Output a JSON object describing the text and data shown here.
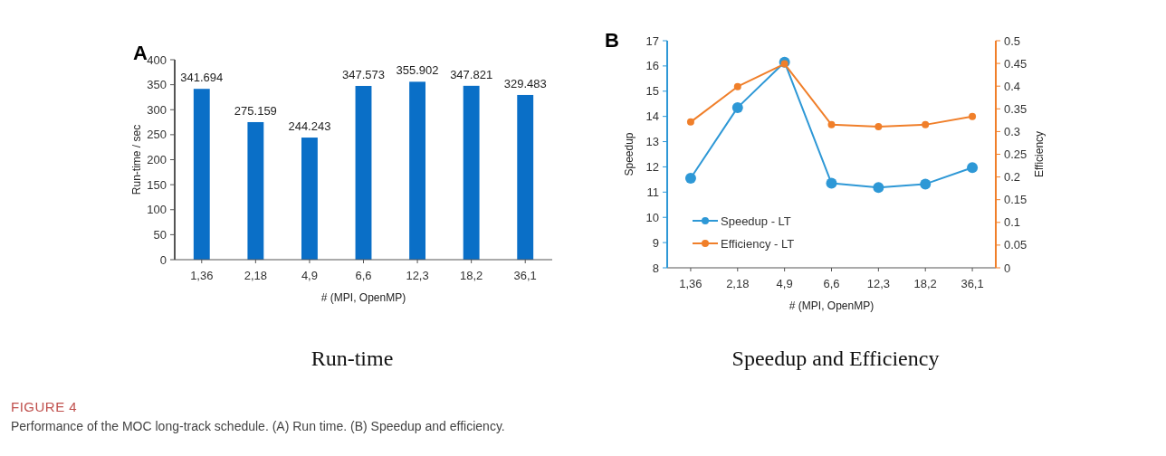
{
  "chart_data": [
    {
      "type": "bar",
      "title": "Run-time",
      "annotations": [
        "A"
      ],
      "xlabel": "# (MPI, OpenMP)",
      "ylabel": "Run-time / sec",
      "categories": [
        "1,36",
        "2,18",
        "4,9",
        "6,6",
        "12,3",
        "18,2",
        "36,1"
      ],
      "values": [
        341.694,
        275.159,
        244.243,
        347.573,
        355.902,
        347.821,
        329.483
      ],
      "color": "#0a6fc7",
      "ylim": [
        0,
        400
      ],
      "yticks": [
        0,
        50,
        100,
        150,
        200,
        250,
        300,
        350,
        400
      ],
      "data_labels": true,
      "grid": false
    },
    {
      "type": "line",
      "title": "Speedup and Efficiency",
      "annotations": [
        "B"
      ],
      "xlabel": "# (MPI, OpenMP)",
      "ylabel": "Speedup",
      "y2label": "Efficiency",
      "categories": [
        "1,36",
        "2,18",
        "4,9",
        "6,6",
        "12,3",
        "18,2",
        "36,1"
      ],
      "series": [
        {
          "name": "Speedup - LT",
          "type": "line",
          "color": "#2e98d6",
          "values": [
            11.55,
            14.35,
            16.15,
            11.35,
            11.18,
            11.32,
            11.97
          ]
        },
        {
          "name": "Efficiency - LT",
          "type": "line",
          "axis": "y2",
          "color": "#f07f2a",
          "values": [
            0.321,
            0.399,
            0.449,
            0.315,
            0.311,
            0.315,
            0.333
          ]
        }
      ],
      "ylim": [
        8,
        17
      ],
      "yticks": [
        8,
        9,
        10,
        11,
        12,
        13,
        14,
        15,
        16,
        17
      ],
      "y2lim": [
        0,
        0.5
      ],
      "y2ticks": [
        0,
        0.05,
        0.1,
        0.15,
        0.2,
        0.25,
        0.3,
        0.35,
        0.4,
        0.45,
        0.5
      ],
      "marker": "circle",
      "legend": "bottom left",
      "grid": false
    },
    {
      "type": "other",
      "title": "FIGURE 4",
      "annotations": [
        "Performance of the MOC long-track schedule. (A) Run time. (B) Speedup and efficiency."
      ]
    }
  ]
}
